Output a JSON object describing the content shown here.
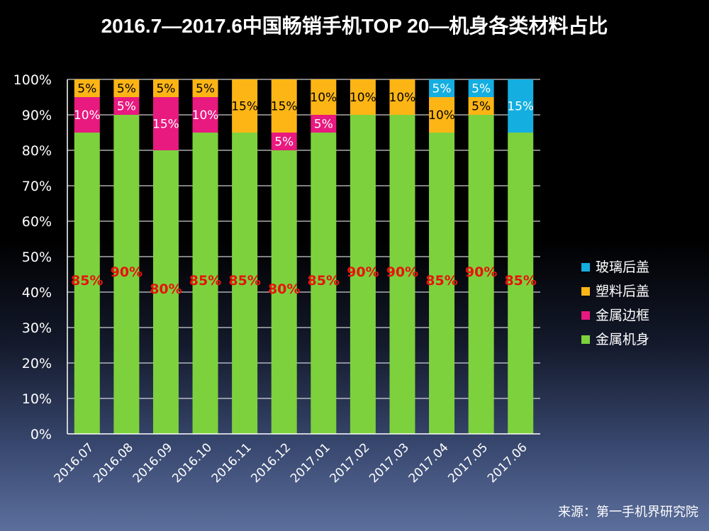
{
  "chart_data": {
    "type": "bar",
    "stacked": true,
    "title": "2016.7—2017.6中国畅销手机TOP 20—机身各类材料占比",
    "categories": [
      "2016.07",
      "2016.08",
      "2016.09",
      "2016.10",
      "2016.11",
      "2016.12",
      "2017.01",
      "2017.02",
      "2017.03",
      "2017.04",
      "2017.05",
      "2017.06"
    ],
    "series": [
      {
        "name": "金属机身",
        "color": "#7dd13d",
        "label_color": "#e8120c",
        "values": [
          85,
          90,
          80,
          85,
          85,
          80,
          85,
          90,
          90,
          85,
          90,
          85
        ]
      },
      {
        "name": "金属边框",
        "color": "#e8197f",
        "label_color": "#ffffff",
        "values": [
          10,
          5,
          15,
          10,
          0,
          5,
          5,
          0,
          0,
          0,
          0,
          0
        ]
      },
      {
        "name": "塑料后盖",
        "color": "#fdb515",
        "label_color": "#000000",
        "values": [
          5,
          5,
          5,
          5,
          15,
          15,
          10,
          10,
          10,
          10,
          5,
          0
        ]
      },
      {
        "name": "玻璃后盖",
        "color": "#14aee0",
        "label_color": "#ffffff",
        "values": [
          0,
          0,
          0,
          0,
          0,
          0,
          0,
          0,
          0,
          5,
          5,
          15
        ]
      }
    ],
    "legend_order": [
      "玻璃后盖",
      "塑料后盖",
      "金属边框",
      "金属机身"
    ],
    "ylim": [
      0,
      100
    ],
    "yticks": [
      "0%",
      "10%",
      "20%",
      "30%",
      "40%",
      "50%",
      "60%",
      "70%",
      "80%",
      "90%",
      "100%"
    ],
    "ylabel": "",
    "xlabel": "",
    "grid": true,
    "legend_position": "right",
    "source_note": "来源：第一手机界研究院"
  }
}
